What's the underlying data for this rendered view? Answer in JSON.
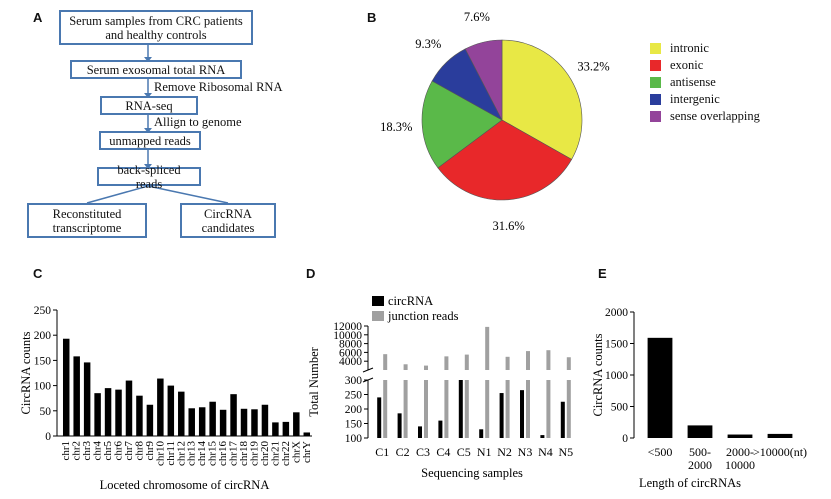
{
  "panels": {
    "a": "A",
    "b": "B",
    "c": "C",
    "d": "D",
    "e": "E"
  },
  "flowchart": {
    "boxes": [
      "Serum samples from CRC patients and healthy controls",
      "Serum exosomal total RNA",
      "RNA-seq",
      "unmapped reads",
      "back-spliced reads",
      "Reconstituted transcriptome",
      "CircRNA candidates"
    ],
    "steps": [
      "Remove Ribosomal RNA",
      "Allign to genome"
    ],
    "border_color": "#4a78b0"
  },
  "chart_data": [
    {
      "id": "B",
      "type": "pie",
      "categories": [
        "intronic",
        "exonic",
        "antisense",
        "intergenic",
        "sense overlapping"
      ],
      "values": [
        33.2,
        31.6,
        18.3,
        9.3,
        7.6
      ],
      "labels": [
        "33.2%",
        "31.6%",
        "18.3%",
        "9.3%",
        "7.6%"
      ],
      "colors": [
        "#e8e845",
        "#e8282a",
        "#5ab949",
        "#2a3d9c",
        "#93449a"
      ],
      "legend": "right"
    },
    {
      "id": "C",
      "type": "bar",
      "categories": [
        "chr1",
        "chr2",
        "chr3",
        "chr4",
        "chr5",
        "chr6",
        "chr7",
        "chr8",
        "chr9",
        "chr10",
        "chr11",
        "chr12",
        "chr13",
        "chr14",
        "chr15",
        "chr16",
        "chr17",
        "chr18",
        "chr19",
        "chr20",
        "chr21",
        "chr22",
        "chrX",
        "chrY"
      ],
      "values": [
        193,
        158,
        146,
        85,
        95,
        92,
        110,
        80,
        62,
        114,
        100,
        88,
        55,
        57,
        68,
        52,
        83,
        54,
        53,
        62,
        27,
        28,
        47,
        7
      ],
      "ylabel": "CircRNA counts",
      "xlabel": "Loceted chromosome of circRNA",
      "ylim": [
        0,
        250
      ],
      "yticks": [
        0,
        50,
        100,
        150,
        200,
        250
      ],
      "color": "#000000"
    },
    {
      "id": "D",
      "type": "bar",
      "categories": [
        "C1",
        "C2",
        "C3",
        "C4",
        "C5",
        "N1",
        "N2",
        "N3",
        "N4",
        "N5"
      ],
      "series": [
        {
          "name": "circRNA",
          "values": [
            240,
            185,
            140,
            160,
            300,
            130,
            255,
            265,
            110,
            225
          ],
          "color": "#000000"
        },
        {
          "name": "junction reads",
          "values": [
            5600,
            3300,
            3000,
            5100,
            5500,
            11800,
            5000,
            6300,
            6500,
            4900
          ],
          "color": "#a0a0a0"
        }
      ],
      "ylabel": "Total Number",
      "xlabel": "Sequencing samples",
      "broken_axis": {
        "lower": [
          100,
          300
        ],
        "upper": [
          2000,
          12000
        ]
      },
      "yticks_lower": [
        100,
        150,
        200,
        250,
        300
      ],
      "yticks_upper": [
        4000,
        6000,
        8000,
        10000,
        12000
      ],
      "legend": "top-left"
    },
    {
      "id": "E",
      "type": "bar",
      "categories": [
        "<500",
        "500-2000",
        "2000-10000",
        ">10000(nt)"
      ],
      "tick_labels": [
        [
          "<500"
        ],
        [
          "500-",
          "2000"
        ],
        [
          "2000-",
          "10000"
        ],
        [
          ">10000(nt)"
        ]
      ],
      "values": [
        1590,
        200,
        55,
        65
      ],
      "ylabel": "CircRNA counts",
      "xlabel": "Length of circRNAs",
      "ylim": [
        0,
        2000
      ],
      "yticks": [
        0,
        500,
        1000,
        1500,
        2000
      ],
      "color": "#000000"
    }
  ]
}
